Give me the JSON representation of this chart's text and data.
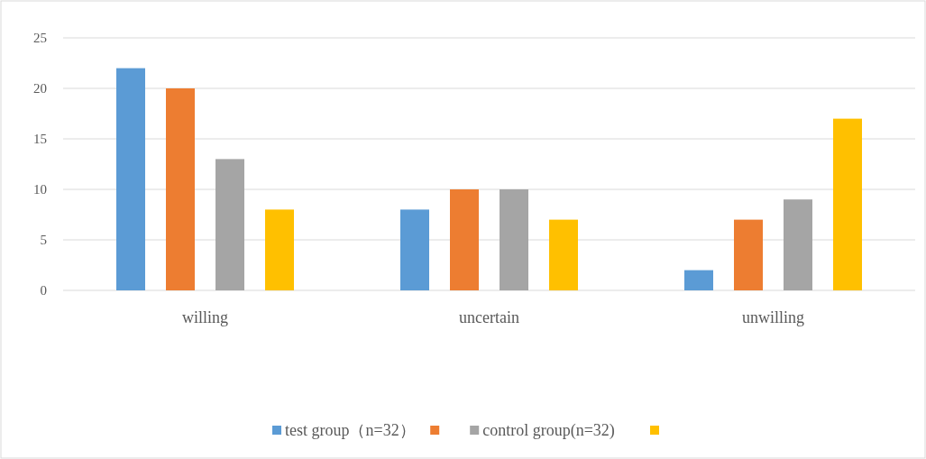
{
  "chart_data": {
    "type": "bar",
    "categories": [
      "willing",
      "uncertain",
      "unwilling"
    ],
    "series": [
      {
        "name": "test group（n=32）",
        "color": "#5b9bd5",
        "values": [
          22,
          8,
          2
        ]
      },
      {
        "color": "#ed7d31",
        "values": [
          20,
          10,
          7
        ]
      },
      {
        "name": "control group(n=32)",
        "color": "#a5a5a5",
        "values": [
          13,
          10,
          9
        ]
      },
      {
        "color": "#ffc000",
        "values": [
          8,
          7,
          17
        ]
      }
    ],
    "ylim": [
      0,
      25
    ],
    "yticks": [
      0,
      5,
      10,
      15,
      20,
      25
    ],
    "grid": "y",
    "legend": "bottom"
  }
}
